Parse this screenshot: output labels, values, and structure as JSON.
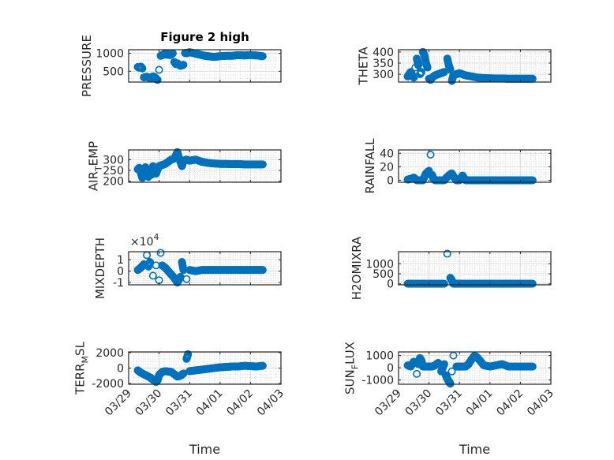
{
  "figure": {
    "title": "Figure 2 high",
    "marker_color": "#0072BD"
  },
  "chart_data": [
    {
      "type": "scatter",
      "id": "pressure",
      "title": "Figure 2 high",
      "ylabel": "PRESSURE",
      "ylabel_sub": null,
      "xlabel": "",
      "xlim": [
        0,
        5
      ],
      "ylim": [
        200,
        1100
      ],
      "yticks": [
        500,
        1000
      ],
      "ytick_labels": [
        "500",
        "1000"
      ],
      "y_exponent": null,
      "x": [
        0.3,
        0.35,
        0.4,
        0.45,
        0.5,
        0.6,
        0.7,
        0.75,
        0.8,
        0.85,
        0.9,
        0.95,
        1.0,
        1.05,
        1.1,
        1.15,
        1.2,
        1.25,
        1.3,
        1.35,
        1.4,
        1.45,
        1.5,
        1.55,
        1.6,
        1.7,
        1.8,
        1.85,
        1.9,
        1.95,
        2.0,
        2.1,
        2.2,
        2.3,
        2.4,
        2.5,
        2.6,
        2.7,
        2.8,
        2.9,
        3.0,
        3.2,
        3.4,
        3.6,
        3.8,
        4.0,
        4.2,
        4.4
      ],
      "y": [
        620,
        600,
        630,
        580,
        330,
        350,
        300,
        320,
        360,
        340,
        290,
        260,
        540,
        930,
        950,
        970,
        990,
        960,
        980,
        950,
        970,
        1000,
        760,
        700,
        720,
        650,
        680,
        1010,
        1000,
        1020,
        1030,
        1010,
        990,
        970,
        950,
        930,
        920,
        910,
        900,
        910,
        920,
        930,
        930,
        950,
        940,
        950,
        940,
        920
      ]
    },
    {
      "type": "scatter",
      "id": "theta",
      "title": "",
      "ylabel": "THETA",
      "ylabel_sub": null,
      "xlabel": "",
      "xlim": [
        0,
        5
      ],
      "ylim": [
        265,
        410
      ],
      "yticks": [
        300,
        350,
        400
      ],
      "ytick_labels": [
        "300",
        "350",
        "400"
      ],
      "y_exponent": null,
      "x": [
        0.3,
        0.35,
        0.4,
        0.45,
        0.5,
        0.55,
        0.6,
        0.65,
        0.7,
        0.75,
        0.8,
        0.85,
        0.9,
        0.95,
        1.0,
        1.05,
        1.1,
        1.15,
        1.2,
        1.3,
        1.4,
        1.5,
        1.6,
        1.65,
        1.7,
        1.75,
        1.8,
        1.9,
        2.0,
        2.2,
        2.4,
        2.6,
        2.8,
        3.0,
        3.2,
        3.4,
        3.6,
        3.8,
        4.0,
        4.2,
        4.4
      ],
      "y": [
        290,
        300,
        310,
        295,
        285,
        330,
        370,
        340,
        300,
        310,
        400,
        385,
        350,
        330,
        280,
        275,
        285,
        290,
        295,
        300,
        305,
        310,
        370,
        340,
        320,
        270,
        295,
        300,
        305,
        295,
        290,
        285,
        283,
        282,
        281,
        281,
        280,
        280,
        280,
        280,
        280
      ]
    },
    {
      "type": "scatter",
      "id": "air-temp",
      "title": "",
      "ylabel": "AIR",
      "ylabel_sub": "T",
      "ylabel_after": "EMP",
      "xlabel": "",
      "xlim": [
        0,
        5
      ],
      "ylim": [
        195,
        345
      ],
      "yticks": [
        200,
        250,
        300
      ],
      "ytick_labels": [
        "200",
        "250",
        "300"
      ],
      "y_exponent": null,
      "x": [
        0.3,
        0.35,
        0.4,
        0.45,
        0.5,
        0.55,
        0.6,
        0.65,
        0.7,
        0.75,
        0.8,
        0.85,
        0.9,
        0.95,
        1.0,
        1.1,
        1.2,
        1.3,
        1.4,
        1.5,
        1.6,
        1.65,
        1.7,
        1.75,
        1.8,
        1.9,
        2.0,
        2.2,
        2.4,
        2.6,
        2.8,
        3.0,
        3.2,
        3.4,
        3.6,
        3.8,
        4.0,
        4.2,
        4.4
      ],
      "y": [
        255,
        262,
        240,
        215,
        230,
        265,
        245,
        220,
        250,
        230,
        270,
        260,
        235,
        255,
        270,
        275,
        280,
        290,
        300,
        305,
        335,
        310,
        290,
        270,
        295,
        300,
        295,
        300,
        290,
        285,
        282,
        280,
        280,
        279,
        279,
        278,
        278,
        278,
        278
      ]
    },
    {
      "type": "scatter",
      "id": "rainfall",
      "title": "",
      "ylabel": "RAINFALL",
      "ylabel_sub": null,
      "xlabel": "",
      "xlim": [
        0,
        5
      ],
      "ylim": [
        -3,
        45
      ],
      "yticks": [
        0,
        20,
        40
      ],
      "ytick_labels": [
        "0",
        "20",
        "40"
      ],
      "y_exponent": null,
      "x": [
        0.3,
        0.4,
        0.5,
        0.6,
        0.7,
        0.8,
        0.9,
        1.0,
        1.05,
        1.1,
        1.15,
        1.2,
        1.3,
        1.4,
        1.5,
        1.6,
        1.7,
        1.75,
        1.8,
        1.9,
        2.0,
        2.1,
        2.2,
        2.4,
        2.6,
        2.8,
        3.0,
        3.2,
        3.4,
        3.6,
        3.8,
        4.0,
        4.2,
        4.4
      ],
      "y": [
        1,
        2,
        4,
        0,
        0,
        0,
        10,
        14,
        38,
        8,
        2,
        0,
        0,
        0,
        0,
        5,
        9,
        10,
        6,
        0,
        0,
        7,
        0,
        0,
        0,
        0,
        0,
        0,
        0,
        0,
        0,
        0,
        0,
        0
      ]
    },
    {
      "type": "scatter",
      "id": "mixdepth",
      "title": "",
      "ylabel": "MIXDEPTH",
      "ylabel_sub": null,
      "xlabel": "",
      "xlim": [
        0,
        5
      ],
      "ylim": [
        -1.2,
        1.7
      ],
      "yticks": [
        -1,
        0,
        1
      ],
      "ytick_labels": [
        "-1",
        "0",
        "1"
      ],
      "y_exponent": "4",
      "x": [
        0.3,
        0.4,
        0.5,
        0.6,
        0.65,
        0.7,
        0.8,
        0.9,
        1.0,
        1.05,
        1.1,
        1.2,
        1.3,
        1.4,
        1.5,
        1.6,
        1.7,
        1.75,
        1.8,
        1.9,
        2.0,
        2.2,
        2.4,
        2.6,
        2.8,
        3.0,
        3.2,
        3.4,
        3.6,
        3.8,
        4.0,
        4.2,
        4.4
      ],
      "y": [
        0.1,
        0.3,
        0.6,
        1.4,
        0.4,
        0.8,
        -0.4,
        0.5,
        -0.8,
        1.6,
        0.5,
        0.3,
        0.0,
        -0.3,
        -0.6,
        -1.0,
        -0.5,
        0.8,
        0.1,
        -0.7,
        0.1,
        0.0,
        0.1,
        0.1,
        0.1,
        0.1,
        0.1,
        0.1,
        0.1,
        0.1,
        0.1,
        0.1,
        0.1
      ]
    },
    {
      "type": "scatter",
      "id": "h2omixra",
      "title": "",
      "ylabel": "H2OMIXRA",
      "ylabel_sub": null,
      "xlabel": "",
      "xlim": [
        0,
        5
      ],
      "ylim": [
        -50,
        1600
      ],
      "yticks": [
        0,
        500,
        1000
      ],
      "ytick_labels": [
        "0",
        "500",
        "1000"
      ],
      "y_exponent": null,
      "x": [
        0.3,
        0.5,
        0.7,
        0.9,
        1.1,
        1.3,
        1.5,
        1.6,
        1.7,
        1.75,
        1.8,
        1.9,
        2.0,
        2.2,
        2.4,
        2.6,
        2.8,
        3.0,
        3.2,
        3.4,
        3.6,
        3.8,
        4.0,
        4.2,
        4.4
      ],
      "y": [
        5,
        5,
        5,
        5,
        5,
        5,
        5,
        1500,
        300,
        180,
        5,
        5,
        5,
        5,
        5,
        5,
        5,
        5,
        5,
        5,
        5,
        5,
        5,
        5,
        5
      ]
    },
    {
      "type": "scatter",
      "id": "terr-msl",
      "title": "",
      "ylabel": "TERR",
      "ylabel_sub": "M",
      "ylabel_after": "SL",
      "xlabel": "Time",
      "xlim": [
        0,
        5
      ],
      "ylim": [
        -2100,
        2100
      ],
      "yticks": [
        -2000,
        0,
        2000
      ],
      "ytick_labels": [
        "-2000",
        "0",
        "2000"
      ],
      "y_exponent": null,
      "xticks": [
        0,
        1,
        2,
        3,
        4,
        5
      ],
      "xtick_labels": [
        "03/29",
        "03/30",
        "03/31",
        "04/01",
        "04/02",
        "04/03"
      ],
      "x": [
        0.3,
        0.4,
        0.5,
        0.6,
        0.7,
        0.8,
        0.9,
        0.95,
        1.0,
        1.1,
        1.2,
        1.3,
        1.4,
        1.5,
        1.6,
        1.7,
        1.8,
        1.9,
        1.95,
        2.0,
        2.2,
        2.4,
        2.6,
        2.8,
        3.0,
        3.2,
        3.4,
        3.6,
        3.8,
        4.0,
        4.2,
        4.4
      ],
      "y": [
        -300,
        -600,
        -800,
        -1000,
        -1200,
        -1500,
        -1800,
        -1600,
        -900,
        -500,
        -400,
        -450,
        -500,
        -800,
        -1100,
        -1000,
        -700,
        1200,
        1800,
        -400,
        -300,
        -200,
        -100,
        0,
        100,
        150,
        200,
        200,
        300,
        250,
        200,
        300
      ]
    },
    {
      "type": "scatter",
      "id": "sun-flux",
      "title": "",
      "ylabel": "SUN",
      "ylabel_sub": "F",
      "ylabel_after": "LUX",
      "xlabel": "Time",
      "xlim": [
        0,
        5
      ],
      "ylim": [
        -1350,
        1300
      ],
      "yticks": [
        -1000,
        0,
        1000
      ],
      "ytick_labels": [
        "-1000",
        "0",
        "1000"
      ],
      "y_exponent": null,
      "xticks": [
        0,
        1,
        2,
        3,
        4,
        5
      ],
      "xtick_labels": [
        "03/29",
        "03/30",
        "03/31",
        "04/01",
        "04/02",
        "04/03"
      ],
      "x": [
        0.3,
        0.4,
        0.5,
        0.6,
        0.65,
        0.7,
        0.75,
        0.8,
        0.9,
        1.0,
        1.1,
        1.2,
        1.3,
        1.4,
        1.5,
        1.55,
        1.6,
        1.65,
        1.7,
        1.75,
        1.8,
        1.9,
        2.0,
        2.1,
        2.2,
        2.3,
        2.4,
        2.5,
        2.6,
        2.7,
        2.8,
        3.0,
        3.2,
        3.4,
        3.6,
        3.8,
        4.0,
        4.2,
        4.4
      ],
      "y": [
        200,
        100,
        500,
        -500,
        300,
        800,
        600,
        100,
        100,
        100,
        100,
        200,
        400,
        -300,
        300,
        -600,
        -900,
        -1100,
        -1300,
        -300,
        1000,
        100,
        100,
        100,
        100,
        300,
        700,
        1000,
        800,
        500,
        200,
        100,
        200,
        300,
        100,
        100,
        100,
        100,
        100
      ]
    }
  ]
}
